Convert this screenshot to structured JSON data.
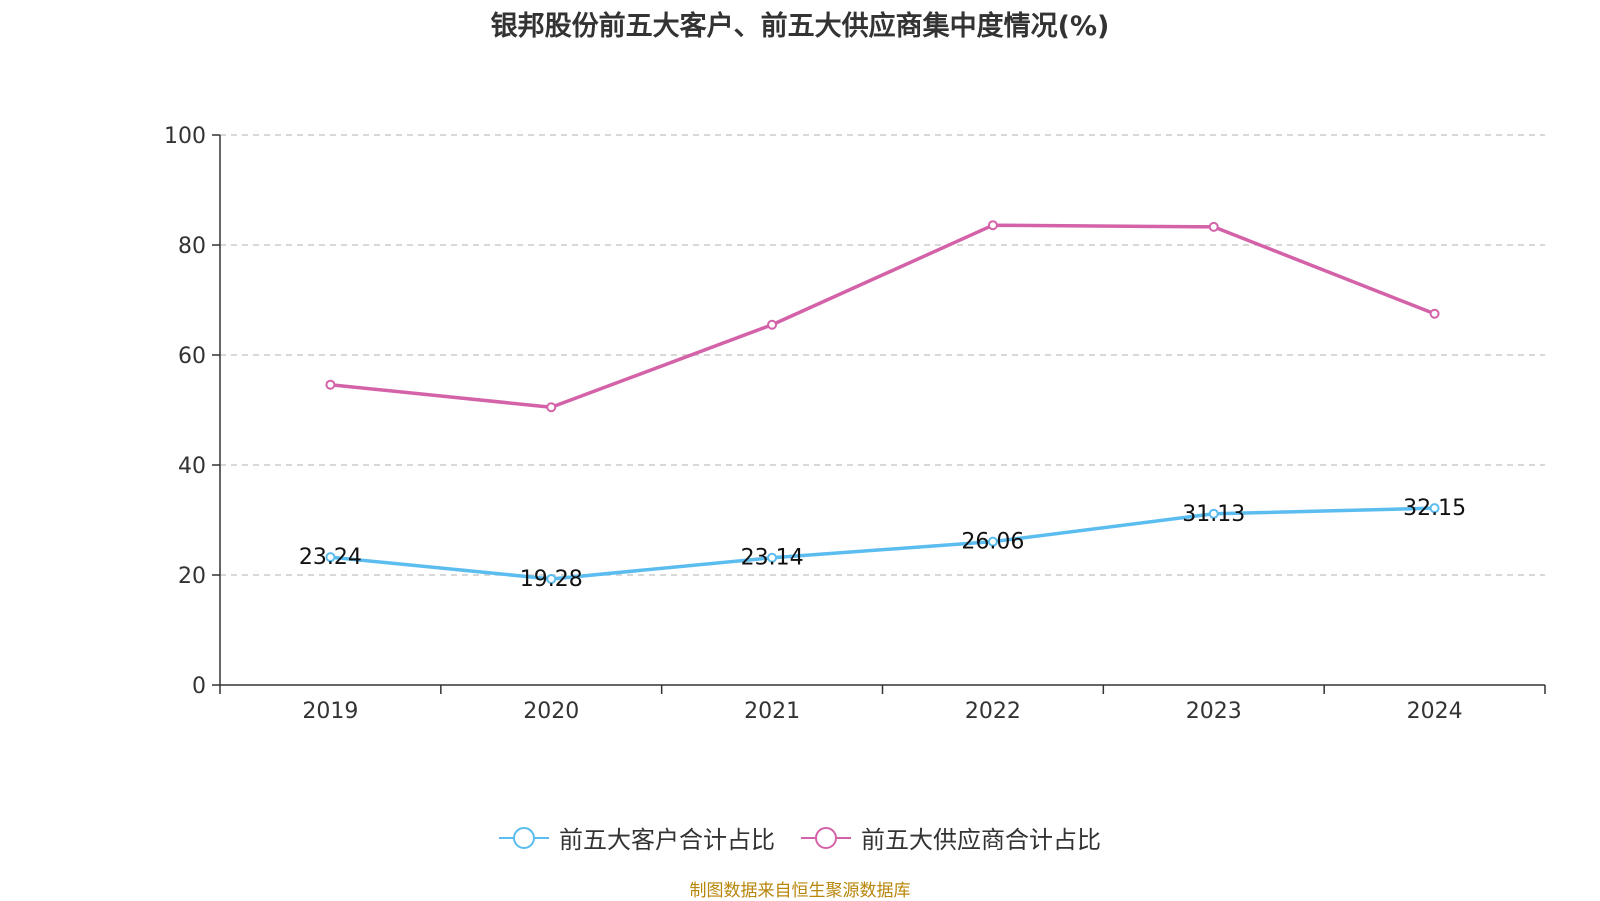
{
  "chart_data": {
    "type": "line",
    "title": "银邦股份前五大客户、前五大供应商集中度情况(%)",
    "categories": [
      "2019",
      "2020",
      "2021",
      "2022",
      "2023",
      "2024"
    ],
    "ylim": [
      0,
      100
    ],
    "yticks": [
      0,
      20,
      40,
      60,
      80,
      100
    ],
    "grid": true,
    "legend_position": "bottom-center",
    "series": [
      {
        "name": "前五大客户合计占比",
        "color": "#5bbcf0",
        "values": [
          23.24,
          19.28,
          23.14,
          26.06,
          31.13,
          32.15
        ],
        "labels": [
          "23.24",
          "19.28",
          "23.14",
          "26.06",
          "31.13",
          "32.15"
        ]
      },
      {
        "name": "前五大供应商合计占比",
        "color": "#d462a8",
        "values": [
          54.6,
          50.5,
          65.5,
          83.6,
          83.3,
          67.5
        ]
      }
    ]
  },
  "source": "制图数据来自恒生聚源数据库"
}
